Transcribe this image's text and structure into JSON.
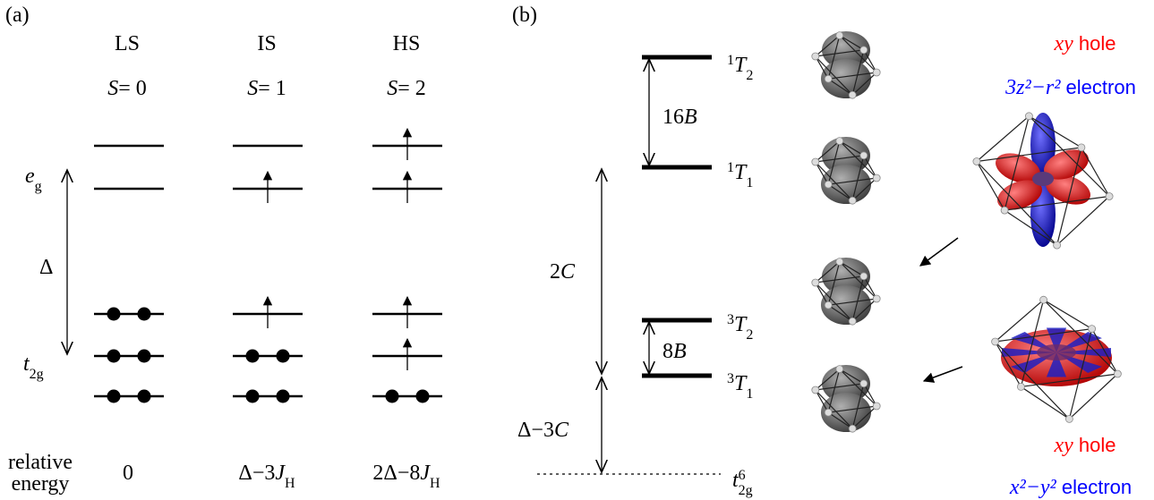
{
  "panel_a": {
    "label": "(a)",
    "eg": {
      "main": "e",
      "sub": "g"
    },
    "gap": "Δ",
    "t2g": {
      "main": "t",
      "sub": "2g"
    },
    "columns": [
      {
        "state": "LS",
        "spin": {
          "symbol": "S",
          "value": "= 0"
        },
        "energy": {
          "pre": "0"
        }
      },
      {
        "state": "IS",
        "spin": {
          "symbol": "S",
          "value": "= 1"
        },
        "energy": {
          "pre": "Δ−3",
          "var": "J",
          "sub": "H"
        }
      },
      {
        "state": "HS",
        "spin": {
          "symbol": "S",
          "value": "= 2"
        },
        "energy": {
          "pre": "2Δ−8",
          "var": "J",
          "sub": "H"
        }
      }
    ],
    "row_label": [
      "relative",
      "energy"
    ]
  },
  "panel_b": {
    "label": "(b)",
    "splittings": [
      {
        "coef": "16",
        "var": "B"
      },
      {
        "coef": "8",
        "var": "B"
      },
      {
        "coef": "2",
        "var": "C"
      },
      {
        "coef": "Δ−3",
        "var": "C"
      }
    ],
    "terms": [
      {
        "sup": "1",
        "main": "T",
        "sub": "2"
      },
      {
        "sup": "1",
        "main": "T",
        "sub": "1"
      },
      {
        "sup": "3",
        "main": "T",
        "sub": "2"
      },
      {
        "sup": "3",
        "main": "T",
        "sub": "1"
      }
    ],
    "ground": {
      "main": "t",
      "sub": "2g",
      "sup": "6"
    },
    "annotations": [
      {
        "orbital": "xy",
        "kind": "hole",
        "color": "#ff0000"
      },
      {
        "orbital": "3z²−r²",
        "kind": "electron",
        "color": "#0000ff"
      },
      {
        "orbital": "xy",
        "kind": "hole",
        "color": "#ff0000"
      },
      {
        "orbital": "x²−y²",
        "kind": "electron",
        "color": "#0000ff"
      }
    ]
  }
}
